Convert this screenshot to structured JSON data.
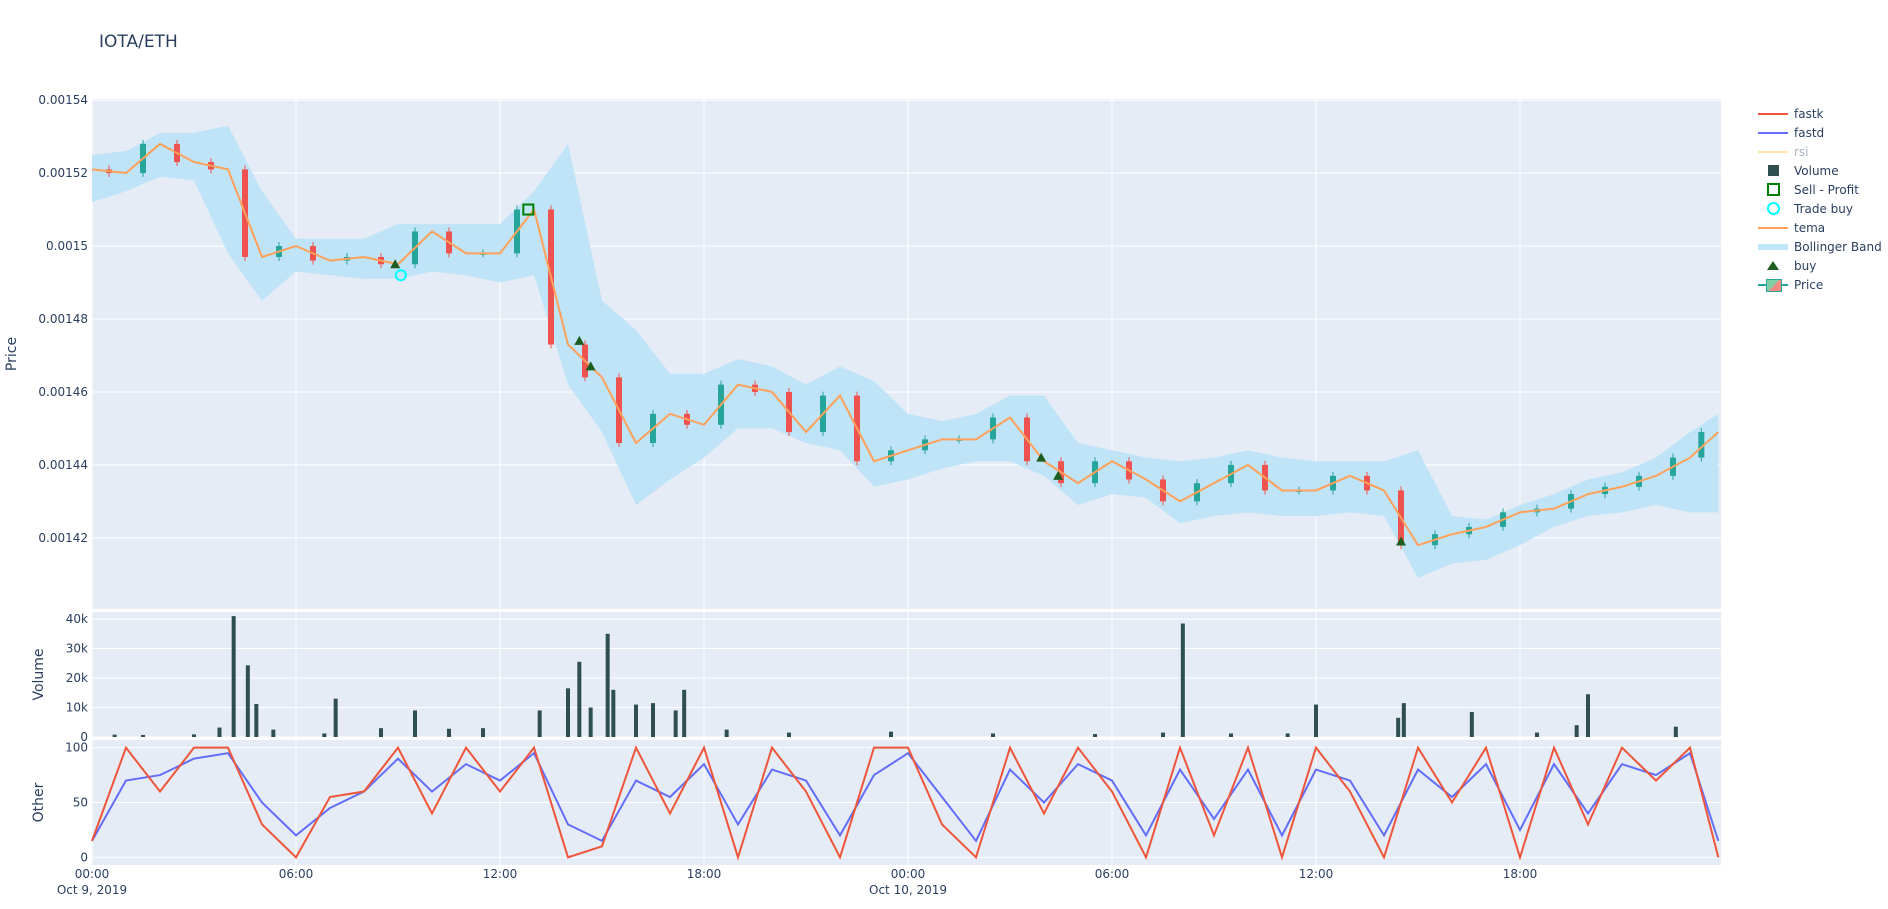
{
  "title": "IOTA/ETH",
  "legend": [
    {
      "name": "fastk",
      "kind": "line",
      "color": "#EF553B"
    },
    {
      "name": "fastd",
      "kind": "line",
      "color": "#636EFA"
    },
    {
      "name": "rsi",
      "kind": "line",
      "color": "#FFE4A6",
      "hidden": true
    },
    {
      "name": "Volume",
      "kind": "square",
      "color": "#2F4F4F"
    },
    {
      "name": "Sell - Profit",
      "kind": "square-open",
      "color": "#008000"
    },
    {
      "name": "Trade buy",
      "kind": "circle-open",
      "color": "#00FFFF"
    },
    {
      "name": "tema",
      "kind": "line",
      "color": "#FFA15A"
    },
    {
      "name": "Bollinger Band",
      "kind": "band",
      "color": "#BFE6F9"
    },
    {
      "name": "buy",
      "kind": "triangle",
      "color": "#1B5E20"
    },
    {
      "name": "Price",
      "kind": "candle",
      "color": "#26A69A"
    }
  ],
  "chart_data": [
    {
      "type": "candlestick",
      "ylabel": "Price",
      "ylim": [
        0.0014005,
        0.0015403
      ],
      "yticks": [
        "0.00142",
        "0.00144",
        "0.00146",
        "0.00148",
        "0.0015",
        "0.00152",
        "0.00154"
      ],
      "grid": true,
      "times": [
        "2019-10-09 00:00",
        "2019-10-09 01:00",
        "2019-10-09 02:00",
        "2019-10-09 03:00",
        "2019-10-09 04:00",
        "2019-10-09 05:00",
        "2019-10-09 06:00",
        "2019-10-09 07:00",
        "2019-10-09 08:00",
        "2019-10-09 09:00",
        "2019-10-09 10:00",
        "2019-10-09 11:00",
        "2019-10-09 12:00",
        "2019-10-09 13:00",
        "2019-10-09 14:00",
        "2019-10-09 15:00",
        "2019-10-09 16:00",
        "2019-10-09 17:00",
        "2019-10-09 18:00",
        "2019-10-09 19:00",
        "2019-10-09 20:00",
        "2019-10-09 21:00",
        "2019-10-09 22:00",
        "2019-10-09 23:00",
        "2019-10-10 00:00",
        "2019-10-10 01:00",
        "2019-10-10 02:00",
        "2019-10-10 03:00",
        "2019-10-10 04:00",
        "2019-10-10 05:00",
        "2019-10-10 06:00",
        "2019-10-10 07:00",
        "2019-10-10 08:00",
        "2019-10-10 09:00",
        "2019-10-10 10:00",
        "2019-10-10 11:00",
        "2019-10-10 12:00",
        "2019-10-10 13:00",
        "2019-10-10 14:00",
        "2019-10-10 15:00",
        "2019-10-10 16:00",
        "2019-10-10 17:00",
        "2019-10-10 18:00",
        "2019-10-10 19:00",
        "2019-10-10 20:00",
        "2019-10-10 21:00",
        "2019-10-10 22:00",
        "2019-10-10 23:00",
        "2019-10-10 23:50"
      ],
      "close": [
        0.001521,
        0.00152,
        0.001528,
        0.001523,
        0.001521,
        0.001497,
        0.0015,
        0.001496,
        0.001497,
        0.001495,
        0.001504,
        0.001498,
        0.001498,
        0.00151,
        0.001473,
        0.001464,
        0.001446,
        0.001454,
        0.001451,
        0.001462,
        0.00146,
        0.001449,
        0.001459,
        0.001441,
        0.001444,
        0.001447,
        0.001447,
        0.001453,
        0.001441,
        0.001435,
        0.001441,
        0.001436,
        0.00143,
        0.001435,
        0.00144,
        0.001433,
        0.001433,
        0.001437,
        0.001433,
        0.001418,
        0.001421,
        0.001423,
        0.001427,
        0.001428,
        0.001432,
        0.001434,
        0.001437,
        0.001442,
        0.001449
      ],
      "tema": [
        0.001521,
        0.00152,
        0.001528,
        0.001523,
        0.001521,
        0.001497,
        0.0015,
        0.001496,
        0.001497,
        0.001495,
        0.001504,
        0.001498,
        0.001498,
        0.00151,
        0.001473,
        0.001464,
        0.001446,
        0.001454,
        0.001451,
        0.001462,
        0.00146,
        0.001449,
        0.001459,
        0.001441,
        0.001444,
        0.001447,
        0.001447,
        0.001453,
        0.001441,
        0.001435,
        0.001441,
        0.001436,
        0.00143,
        0.001435,
        0.00144,
        0.001433,
        0.001433,
        0.001437,
        0.001433,
        0.001418,
        0.001421,
        0.001423,
        0.001427,
        0.001428,
        0.001432,
        0.001434,
        0.001437,
        0.001442,
        0.001449
      ],
      "bb_upper": [
        0.001525,
        0.001526,
        0.001531,
        0.001531,
        0.001533,
        0.001515,
        0.001502,
        0.001502,
        0.001502,
        0.001506,
        0.001506,
        0.001506,
        0.001506,
        0.001515,
        0.001528,
        0.001485,
        0.001477,
        0.001465,
        0.001465,
        0.001469,
        0.001467,
        0.001462,
        0.001467,
        0.001463,
        0.001454,
        0.001452,
        0.001454,
        0.001459,
        0.001459,
        0.001446,
        0.001444,
        0.001442,
        0.001441,
        0.001442,
        0.001444,
        0.001442,
        0.001441,
        0.001441,
        0.001441,
        0.001444,
        0.001426,
        0.001425,
        0.001429,
        0.001432,
        0.001436,
        0.001438,
        0.001442,
        0.001449,
        0.001454
      ],
      "bb_lower": [
        0.001512,
        0.001515,
        0.001519,
        0.001518,
        0.001498,
        0.001485,
        0.001493,
        0.001492,
        0.001491,
        0.001491,
        0.001493,
        0.001492,
        0.00149,
        0.001492,
        0.001462,
        0.001449,
        0.001429,
        0.001436,
        0.001442,
        0.00145,
        0.00145,
        0.001446,
        0.001444,
        0.001434,
        0.001436,
        0.001439,
        0.001441,
        0.001441,
        0.001437,
        0.001429,
        0.001432,
        0.001431,
        0.001424,
        0.001426,
        0.001427,
        0.001426,
        0.001426,
        0.001427,
        0.001426,
        0.001409,
        0.001413,
        0.001414,
        0.001418,
        0.001423,
        0.001426,
        0.001427,
        0.001429,
        0.001427,
        0.001427
      ],
      "buy": [
        {
          "time": "2019-10-09 08:55",
          "price": 0.001495
        },
        {
          "time": "2019-10-09 14:20",
          "price": 0.001474
        },
        {
          "time": "2019-10-09 14:40",
          "price": 0.001467
        },
        {
          "time": "2019-10-10 03:55",
          "price": 0.001442
        },
        {
          "time": "2019-10-10 04:25",
          "price": 0.001437
        },
        {
          "time": "2019-10-10 14:30",
          "price": 0.001419
        }
      ],
      "trade_buy": [
        {
          "time": "2019-10-09 09:05",
          "price": 0.001492
        }
      ],
      "sell_profit": [
        {
          "time": "2019-10-09 12:50",
          "price": 0.00151
        }
      ]
    },
    {
      "type": "bar",
      "ylabel": "Volume",
      "ylim": [
        0,
        42400
      ],
      "yticks": [
        "0",
        "10k",
        "20k",
        "30k",
        "40k"
      ],
      "bars": [
        {
          "time": "2019-10-09 00:40",
          "value": 800
        },
        {
          "time": "2019-10-09 01:30",
          "value": 700
        },
        {
          "time": "2019-10-09 03:00",
          "value": 900
        },
        {
          "time": "2019-10-09 03:45",
          "value": 3200
        },
        {
          "time": "2019-10-09 04:10",
          "value": 41000
        },
        {
          "time": "2019-10-09 04:35",
          "value": 24300
        },
        {
          "time": "2019-10-09 04:50",
          "value": 11200
        },
        {
          "time": "2019-10-09 05:20",
          "value": 2500
        },
        {
          "time": "2019-10-09 06:50",
          "value": 1200
        },
        {
          "time": "2019-10-09 07:10",
          "value": 13000
        },
        {
          "time": "2019-10-09 08:30",
          "value": 3000
        },
        {
          "time": "2019-10-09 09:30",
          "value": 9000
        },
        {
          "time": "2019-10-09 10:30",
          "value": 2800
        },
        {
          "time": "2019-10-09 11:30",
          "value": 3000
        },
        {
          "time": "2019-10-09 13:10",
          "value": 9000
        },
        {
          "time": "2019-10-09 14:00",
          "value": 16500
        },
        {
          "time": "2019-10-09 14:20",
          "value": 25500
        },
        {
          "time": "2019-10-09 14:40",
          "value": 10000
        },
        {
          "time": "2019-10-09 15:10",
          "value": 35000
        },
        {
          "time": "2019-10-09 15:20",
          "value": 16000
        },
        {
          "time": "2019-10-09 16:00",
          "value": 11000
        },
        {
          "time": "2019-10-09 16:30",
          "value": 11500
        },
        {
          "time": "2019-10-09 17:10",
          "value": 9000
        },
        {
          "time": "2019-10-09 17:25",
          "value": 16000
        },
        {
          "time": "2019-10-09 18:40",
          "value": 2500
        },
        {
          "time": "2019-10-09 20:30",
          "value": 1500
        },
        {
          "time": "2019-10-09 23:30",
          "value": 1800
        },
        {
          "time": "2019-10-10 02:30",
          "value": 1200
        },
        {
          "time": "2019-10-10 05:30",
          "value": 1000
        },
        {
          "time": "2019-10-10 07:30",
          "value": 1500
        },
        {
          "time": "2019-10-10 08:05",
          "value": 38500
        },
        {
          "time": "2019-10-10 09:30",
          "value": 1200
        },
        {
          "time": "2019-10-10 11:10",
          "value": 1200
        },
        {
          "time": "2019-10-10 12:00",
          "value": 11000
        },
        {
          "time": "2019-10-10 14:25",
          "value": 6500
        },
        {
          "time": "2019-10-10 14:35",
          "value": 11500
        },
        {
          "time": "2019-10-10 16:35",
          "value": 8500
        },
        {
          "time": "2019-10-10 18:30",
          "value": 1500
        },
        {
          "time": "2019-10-10 19:40",
          "value": 4000
        },
        {
          "time": "2019-10-10 20:00",
          "value": 14500
        },
        {
          "time": "2019-10-10 22:35",
          "value": 3500
        }
      ]
    },
    {
      "type": "line",
      "ylabel": "Other",
      "ylim": [
        -7,
        107
      ],
      "yticks": [
        "0",
        "50",
        "100"
      ],
      "fastk": [
        15,
        100,
        60,
        100,
        100,
        30,
        0,
        55,
        60,
        100,
        40,
        100,
        60,
        100,
        0,
        10,
        100,
        40,
        100,
        0,
        100,
        60,
        0,
        100,
        100,
        30,
        0,
        100,
        40,
        100,
        60,
        0,
        100,
        20,
        100,
        0,
        100,
        60,
        0,
        100,
        50,
        100,
        0,
        100,
        30,
        100,
        70,
        100,
        0
      ],
      "fastd": [
        15,
        70,
        75,
        90,
        95,
        50,
        20,
        45,
        60,
        90,
        60,
        85,
        70,
        95,
        30,
        15,
        70,
        55,
        85,
        30,
        80,
        70,
        20,
        75,
        95,
        55,
        15,
        80,
        50,
        85,
        70,
        20,
        80,
        35,
        80,
        20,
        80,
        70,
        20,
        80,
        55,
        85,
        25,
        85,
        40,
        85,
        75,
        95,
        15
      ]
    }
  ],
  "xaxis": {
    "ticks": [
      "00:00",
      "06:00",
      "12:00",
      "18:00",
      "00:00",
      "06:00",
      "12:00",
      "18:00"
    ],
    "dates": [
      "Oct 9, 2019",
      "",
      "",
      "",
      "Oct 10, 2019",
      "",
      "",
      ""
    ]
  }
}
